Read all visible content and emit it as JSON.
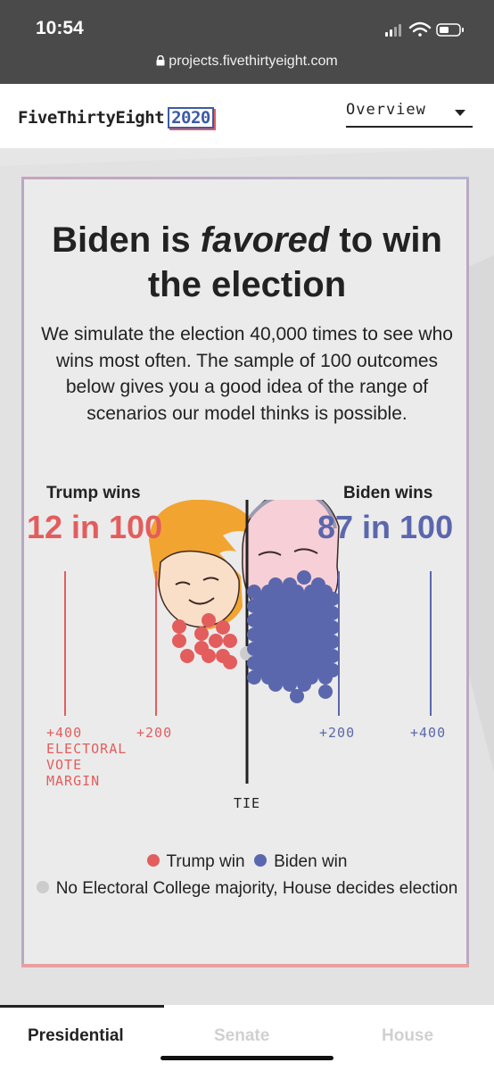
{
  "status": {
    "time": "10:54",
    "url": "projects.fivethirtyeight.com"
  },
  "header": {
    "logo": "FiveThirtyEight",
    "year": "2020",
    "nav_label": "Overview"
  },
  "card": {
    "headline_pre": "Biden is ",
    "headline_em": "favored",
    "headline_post": " to win the election",
    "subtitle": "We simulate the election 40,000 times to see who wins most often. The sample of 100 outcomes below gives you a good idea of the range of scenarios our model thinks is possible.",
    "trump_label": "Trump wins",
    "trump_odds": "12 in 100",
    "biden_label": "Biden wins",
    "biden_odds": "87 in 100",
    "ticks": {
      "left400": "+400",
      "left200": "+200",
      "right200": "+200",
      "right400": "+400"
    },
    "axis_caption": [
      "ELECTORAL",
      "VOTE",
      "MARGIN"
    ],
    "tie_label": "TIE",
    "legend": {
      "trump": "Trump win",
      "biden": "Biden win",
      "house": "No Electoral College majority, House decides election"
    }
  },
  "chart_data": {
    "type": "scatter",
    "title": "Biden is favored to win the election",
    "xlabel": "ELECTORAL VOTE MARGIN",
    "x_ticks": [
      "+400",
      "+200",
      "TIE",
      "+200",
      "+400"
    ],
    "outcome_counts": {
      "trump_win": 12,
      "biden_win": 87,
      "house_decides": 1
    },
    "colors": {
      "trump": "#e35d5d",
      "biden": "#5b67ad",
      "house": "#cccccc"
    }
  },
  "tabs": {
    "presidential": "Presidential",
    "senate": "Senate",
    "house": "House"
  }
}
